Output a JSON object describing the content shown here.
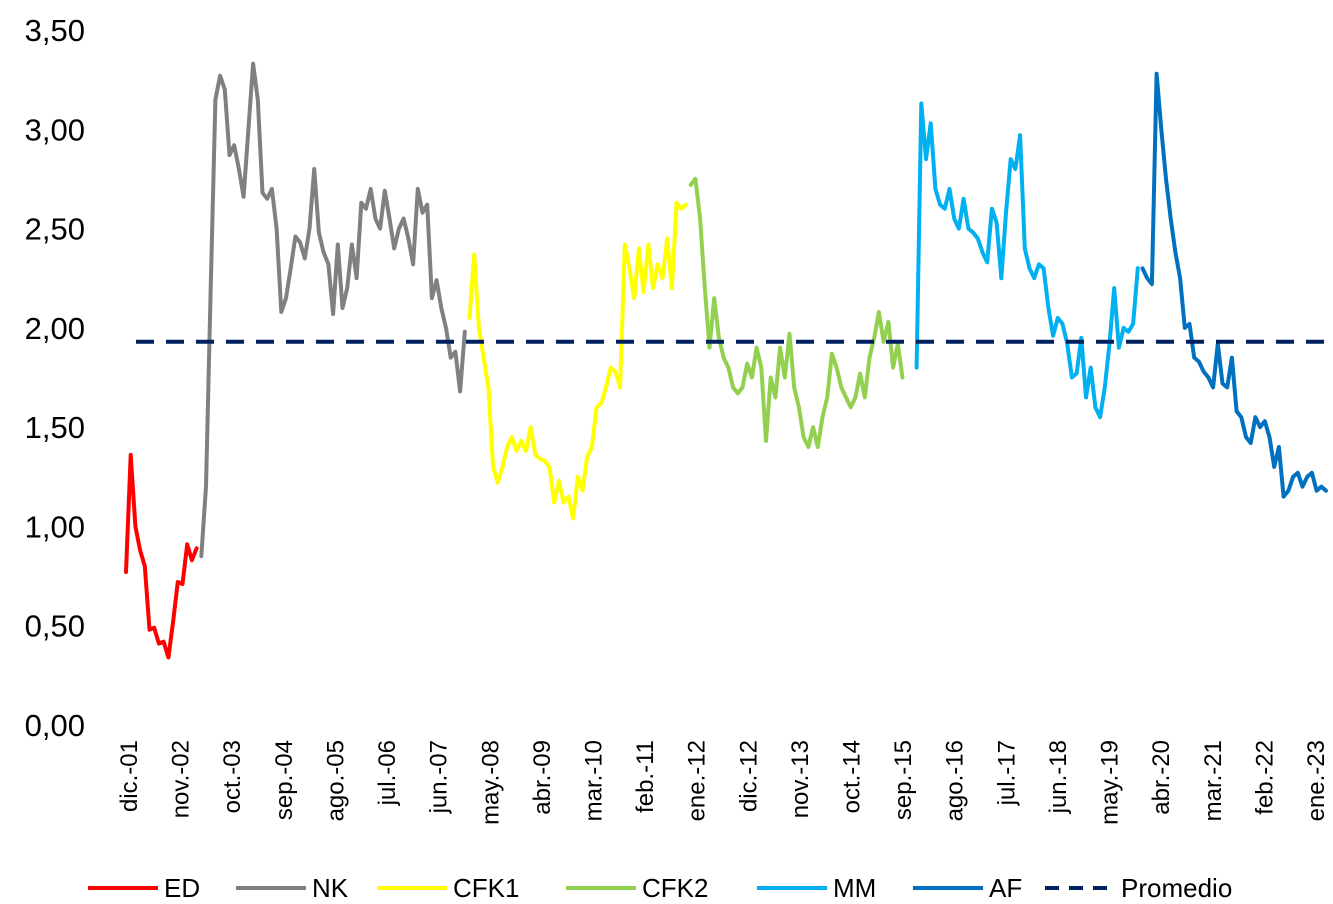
{
  "chart_data": {
    "type": "line",
    "title": "",
    "xlabel": "",
    "ylabel": "",
    "ylim": [
      0,
      3.5
    ],
    "y_ticks": [
      "0,00",
      "0,50",
      "1,00",
      "1,50",
      "2,00",
      "2,50",
      "3,00",
      "3,50"
    ],
    "x_tick_labels": [
      "dic.-01",
      "nov.-02",
      "oct.-03",
      "sep.-04",
      "ago.-05",
      "jul.-06",
      "jun.-07",
      "may.-08",
      "abr.-09",
      "mar.-10",
      "feb.-11",
      "ene.-12",
      "dic.-12",
      "nov.-13",
      "oct.-14",
      "sep.-15",
      "ago.-16",
      "jul.-17",
      "jun.-18",
      "may.-19",
      "abr.-20",
      "mar.-21",
      "feb.-22",
      "ene.-23"
    ],
    "x_start": "2001-12",
    "x_end": "2023-03",
    "grid": false,
    "legend_position": "bottom",
    "promedio": 1.93,
    "series": [
      {
        "name": "ED",
        "color": "#ff0000",
        "points": [
          [
            "2001-12",
            0.77
          ],
          [
            "2002-01",
            1.36
          ],
          [
            "2002-02",
            1.0
          ],
          [
            "2002-03",
            0.88
          ],
          [
            "2002-04",
            0.8
          ],
          [
            "2002-05",
            0.48
          ],
          [
            "2002-06",
            0.49
          ],
          [
            "2002-07",
            0.41
          ],
          [
            "2002-08",
            0.42
          ],
          [
            "2002-09",
            0.34
          ],
          [
            "2002-10",
            0.52
          ],
          [
            "2002-11",
            0.72
          ],
          [
            "2002-12",
            0.71
          ],
          [
            "2003-01",
            0.91
          ],
          [
            "2003-02",
            0.83
          ],
          [
            "2003-03",
            0.89
          ]
        ]
      },
      {
        "name": "NK",
        "color": "#808080",
        "points": [
          [
            "2003-04",
            0.85
          ],
          [
            "2003-05",
            1.2
          ],
          [
            "2003-06",
            2.2
          ],
          [
            "2003-07",
            3.15
          ],
          [
            "2003-08",
            3.27
          ],
          [
            "2003-09",
            3.2
          ],
          [
            "2003-10",
            2.87
          ],
          [
            "2003-11",
            2.92
          ],
          [
            "2003-12",
            2.8
          ],
          [
            "2004-01",
            2.66
          ],
          [
            "2004-02",
            3.0
          ],
          [
            "2004-03",
            3.33
          ],
          [
            "2004-04",
            3.15
          ],
          [
            "2004-05",
            2.68
          ],
          [
            "2004-06",
            2.65
          ],
          [
            "2004-07",
            2.7
          ],
          [
            "2004-08",
            2.5
          ],
          [
            "2004-09",
            2.08
          ],
          [
            "2004-10",
            2.15
          ],
          [
            "2004-11",
            2.3
          ],
          [
            "2004-12",
            2.46
          ],
          [
            "2005-01",
            2.43
          ],
          [
            "2005-02",
            2.35
          ],
          [
            "2005-03",
            2.5
          ],
          [
            "2005-04",
            2.8
          ],
          [
            "2005-05",
            2.48
          ],
          [
            "2005-06",
            2.38
          ],
          [
            "2005-07",
            2.32
          ],
          [
            "2005-08",
            2.07
          ],
          [
            "2005-09",
            2.42
          ],
          [
            "2005-10",
            2.1
          ],
          [
            "2005-11",
            2.2
          ],
          [
            "2005-12",
            2.42
          ],
          [
            "2006-01",
            2.25
          ],
          [
            "2006-02",
            2.63
          ],
          [
            "2006-03",
            2.6
          ],
          [
            "2006-04",
            2.7
          ],
          [
            "2006-05",
            2.55
          ],
          [
            "2006-06",
            2.5
          ],
          [
            "2006-07",
            2.69
          ],
          [
            "2006-08",
            2.55
          ],
          [
            "2006-09",
            2.4
          ],
          [
            "2006-10",
            2.5
          ],
          [
            "2006-11",
            2.55
          ],
          [
            "2006-12",
            2.45
          ],
          [
            "2007-01",
            2.32
          ],
          [
            "2007-02",
            2.7
          ],
          [
            "2007-03",
            2.58
          ],
          [
            "2007-04",
            2.62
          ],
          [
            "2007-05",
            2.15
          ],
          [
            "2007-06",
            2.24
          ],
          [
            "2007-07",
            2.1
          ],
          [
            "2007-08",
            2.0
          ],
          [
            "2007-09",
            1.85
          ],
          [
            "2007-10",
            1.88
          ],
          [
            "2007-11",
            1.68
          ],
          [
            "2007-12",
            1.98
          ]
        ]
      },
      {
        "name": "CFK1",
        "color": "#ffff00",
        "points": [
          [
            "2008-01",
            2.05
          ],
          [
            "2008-02",
            2.37
          ],
          [
            "2008-03",
            2.0
          ],
          [
            "2008-04",
            1.85
          ],
          [
            "2008-05",
            1.7
          ],
          [
            "2008-06",
            1.3
          ],
          [
            "2008-07",
            1.22
          ],
          [
            "2008-08",
            1.3
          ],
          [
            "2008-09",
            1.4
          ],
          [
            "2008-10",
            1.45
          ],
          [
            "2008-11",
            1.38
          ],
          [
            "2008-12",
            1.43
          ],
          [
            "2009-01",
            1.38
          ],
          [
            "2009-02",
            1.5
          ],
          [
            "2009-03",
            1.36
          ],
          [
            "2009-04",
            1.34
          ],
          [
            "2009-05",
            1.33
          ],
          [
            "2009-06",
            1.3
          ],
          [
            "2009-07",
            1.12
          ],
          [
            "2009-08",
            1.23
          ],
          [
            "2009-09",
            1.12
          ],
          [
            "2009-10",
            1.15
          ],
          [
            "2009-11",
            1.04
          ],
          [
            "2009-12",
            1.25
          ],
          [
            "2010-01",
            1.18
          ],
          [
            "2010-02",
            1.35
          ],
          [
            "2010-03",
            1.4
          ],
          [
            "2010-04",
            1.6
          ],
          [
            "2010-05",
            1.62
          ],
          [
            "2010-06",
            1.7
          ],
          [
            "2010-07",
            1.8
          ],
          [
            "2010-08",
            1.78
          ],
          [
            "2010-09",
            1.7
          ],
          [
            "2010-10",
            2.42
          ],
          [
            "2010-11",
            2.3
          ],
          [
            "2010-12",
            2.15
          ],
          [
            "2011-01",
            2.4
          ],
          [
            "2011-02",
            2.18
          ],
          [
            "2011-03",
            2.42
          ],
          [
            "2011-04",
            2.2
          ],
          [
            "2011-05",
            2.32
          ],
          [
            "2011-06",
            2.25
          ],
          [
            "2011-07",
            2.45
          ],
          [
            "2011-08",
            2.2
          ],
          [
            "2011-09",
            2.63
          ],
          [
            "2011-10",
            2.6
          ],
          [
            "2011-11",
            2.62
          ]
        ]
      },
      {
        "name": "CFK2",
        "color": "#92d050",
        "points": [
          [
            "2011-12",
            2.72
          ],
          [
            "2012-01",
            2.75
          ],
          [
            "2012-02",
            2.55
          ],
          [
            "2012-03",
            2.2
          ],
          [
            "2012-04",
            1.9
          ],
          [
            "2012-05",
            2.15
          ],
          [
            "2012-06",
            1.95
          ],
          [
            "2012-07",
            1.85
          ],
          [
            "2012-08",
            1.8
          ],
          [
            "2012-09",
            1.7
          ],
          [
            "2012-10",
            1.67
          ],
          [
            "2012-11",
            1.7
          ],
          [
            "2012-12",
            1.82
          ],
          [
            "2013-01",
            1.75
          ],
          [
            "2013-02",
            1.9
          ],
          [
            "2013-03",
            1.8
          ],
          [
            "2013-04",
            1.43
          ],
          [
            "2013-05",
            1.75
          ],
          [
            "2013-06",
            1.65
          ],
          [
            "2013-07",
            1.9
          ],
          [
            "2013-08",
            1.75
          ],
          [
            "2013-09",
            1.97
          ],
          [
            "2013-10",
            1.7
          ],
          [
            "2013-11",
            1.6
          ],
          [
            "2013-12",
            1.45
          ],
          [
            "2014-01",
            1.4
          ],
          [
            "2014-02",
            1.5
          ],
          [
            "2014-03",
            1.4
          ],
          [
            "2014-04",
            1.55
          ],
          [
            "2014-05",
            1.65
          ],
          [
            "2014-06",
            1.87
          ],
          [
            "2014-07",
            1.8
          ],
          [
            "2014-08",
            1.7
          ],
          [
            "2014-09",
            1.65
          ],
          [
            "2014-10",
            1.6
          ],
          [
            "2014-11",
            1.65
          ],
          [
            "2014-12",
            1.77
          ],
          [
            "2015-01",
            1.65
          ],
          [
            "2015-02",
            1.85
          ],
          [
            "2015-03",
            1.95
          ],
          [
            "2015-04",
            2.08
          ],
          [
            "2015-05",
            1.93
          ],
          [
            "2015-06",
            2.03
          ],
          [
            "2015-07",
            1.8
          ],
          [
            "2015-08",
            1.92
          ],
          [
            "2015-09",
            1.75
          ]
        ]
      },
      {
        "name": "MM",
        "color": "#00b0f0",
        "points": [
          [
            "2015-12",
            1.8
          ],
          [
            "2016-01",
            3.13
          ],
          [
            "2016-02",
            2.85
          ],
          [
            "2016-03",
            3.03
          ],
          [
            "2016-04",
            2.7
          ],
          [
            "2016-05",
            2.62
          ],
          [
            "2016-06",
            2.6
          ],
          [
            "2016-07",
            2.7
          ],
          [
            "2016-08",
            2.55
          ],
          [
            "2016-09",
            2.5
          ],
          [
            "2016-10",
            2.65
          ],
          [
            "2016-11",
            2.5
          ],
          [
            "2016-12",
            2.48
          ],
          [
            "2017-01",
            2.45
          ],
          [
            "2017-02",
            2.38
          ],
          [
            "2017-03",
            2.33
          ],
          [
            "2017-04",
            2.6
          ],
          [
            "2017-05",
            2.53
          ],
          [
            "2017-06",
            2.25
          ],
          [
            "2017-07",
            2.58
          ],
          [
            "2017-08",
            2.85
          ],
          [
            "2017-09",
            2.8
          ],
          [
            "2017-10",
            2.97
          ],
          [
            "2017-11",
            2.4
          ],
          [
            "2017-12",
            2.3
          ],
          [
            "2018-01",
            2.25
          ],
          [
            "2018-02",
            2.32
          ],
          [
            "2018-03",
            2.3
          ],
          [
            "2018-04",
            2.1
          ],
          [
            "2018-05",
            1.96
          ],
          [
            "2018-06",
            2.05
          ],
          [
            "2018-07",
            2.02
          ],
          [
            "2018-08",
            1.92
          ],
          [
            "2018-09",
            1.75
          ],
          [
            "2018-10",
            1.77
          ],
          [
            "2018-11",
            1.95
          ],
          [
            "2018-12",
            1.65
          ],
          [
            "2019-01",
            1.8
          ],
          [
            "2019-02",
            1.6
          ],
          [
            "2019-03",
            1.55
          ],
          [
            "2019-04",
            1.7
          ],
          [
            "2019-05",
            1.92
          ],
          [
            "2019-06",
            2.2
          ],
          [
            "2019-07",
            1.9
          ],
          [
            "2019-08",
            2.0
          ],
          [
            "2019-09",
            1.98
          ],
          [
            "2019-10",
            2.02
          ],
          [
            "2019-11",
            2.3
          ]
        ]
      },
      {
        "name": "AF",
        "color": "#0070c0",
        "points": [
          [
            "2019-12",
            2.3
          ],
          [
            "2020-01",
            2.25
          ],
          [
            "2020-02",
            2.22
          ],
          [
            "2020-03",
            3.28
          ],
          [
            "2020-04",
            3.0
          ],
          [
            "2020-05",
            2.75
          ],
          [
            "2020-06",
            2.55
          ],
          [
            "2020-07",
            2.38
          ],
          [
            "2020-08",
            2.25
          ],
          [
            "2020-09",
            2.0
          ],
          [
            "2020-10",
            2.02
          ],
          [
            "2020-11",
            1.85
          ],
          [
            "2020-12",
            1.83
          ],
          [
            "2021-01",
            1.78
          ],
          [
            "2021-02",
            1.75
          ],
          [
            "2021-03",
            1.7
          ],
          [
            "2021-04",
            1.92
          ],
          [
            "2021-05",
            1.72
          ],
          [
            "2021-06",
            1.7
          ],
          [
            "2021-07",
            1.85
          ],
          [
            "2021-08",
            1.58
          ],
          [
            "2021-09",
            1.55
          ],
          [
            "2021-10",
            1.45
          ],
          [
            "2021-11",
            1.42
          ],
          [
            "2021-12",
            1.55
          ],
          [
            "2022-01",
            1.5
          ],
          [
            "2022-02",
            1.53
          ],
          [
            "2022-03",
            1.45
          ],
          [
            "2022-04",
            1.3
          ],
          [
            "2022-05",
            1.4
          ],
          [
            "2022-06",
            1.15
          ],
          [
            "2022-07",
            1.18
          ],
          [
            "2022-08",
            1.25
          ],
          [
            "2022-09",
            1.27
          ],
          [
            "2022-10",
            1.2
          ],
          [
            "2022-11",
            1.25
          ],
          [
            "2022-12",
            1.27
          ],
          [
            "2023-01",
            1.18
          ],
          [
            "2023-02",
            1.2
          ],
          [
            "2023-03",
            1.18
          ]
        ]
      }
    ],
    "legend": [
      {
        "label": "ED",
        "color": "#ff0000",
        "style": "solid"
      },
      {
        "label": "NK",
        "color": "#808080",
        "style": "solid"
      },
      {
        "label": "CFK1",
        "color": "#ffff00",
        "style": "solid"
      },
      {
        "label": "CFK2",
        "color": "#92d050",
        "style": "solid"
      },
      {
        "label": "MM",
        "color": "#00b0f0",
        "style": "solid"
      },
      {
        "label": "AF",
        "color": "#0070c0",
        "style": "solid"
      },
      {
        "label": "Promedio",
        "color": "#002060",
        "style": "dashed"
      }
    ]
  }
}
